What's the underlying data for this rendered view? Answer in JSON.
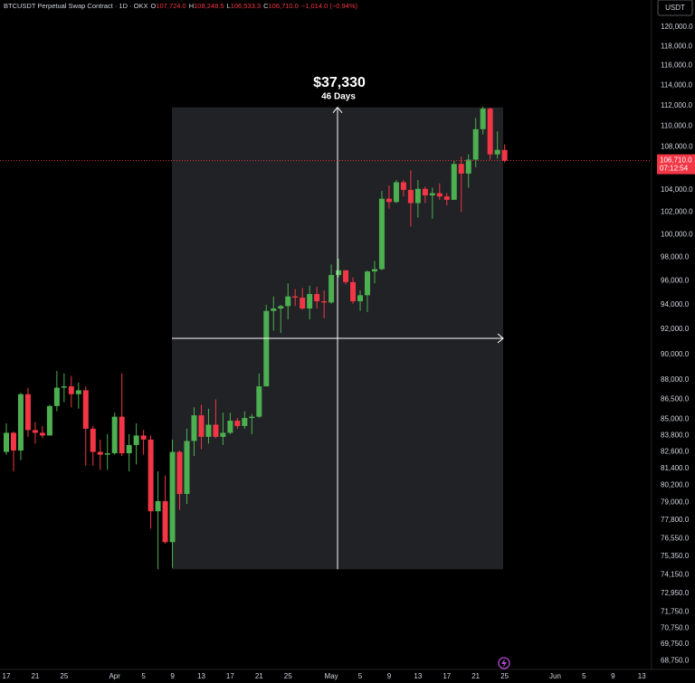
{
  "chart_data": {
    "type": "candlestick",
    "header": {
      "symbol": "BTCUSDT Perpetual Swap Contract · 1D · OKX",
      "ohlc": [
        {
          "key": "O",
          "value": "107,724.0"
        },
        {
          "key": "H",
          "value": "108,248.5"
        },
        {
          "key": "L",
          "value": "106,533.3"
        },
        {
          "key": "C",
          "value": "106,710.0"
        }
      ],
      "change": "−1,014.0 (−0.94%)"
    },
    "currency_button": "USDT",
    "categories": [
      "17",
      null,
      null,
      null,
      "21",
      null,
      null,
      null,
      "25",
      null,
      null,
      null,
      null,
      null,
      null,
      "Apr",
      null,
      null,
      null,
      "5",
      null,
      null,
      null,
      "9",
      null,
      null,
      null,
      "13",
      null,
      null,
      null,
      "17",
      null,
      null,
      null,
      "21",
      null,
      null,
      null,
      "25",
      null,
      null,
      null,
      null,
      null,
      "May",
      null,
      null,
      null,
      "5",
      null,
      null,
      null,
      "9",
      null,
      null,
      null,
      "13",
      null,
      null,
      null,
      "17",
      null,
      null,
      null,
      "21",
      null,
      null,
      null,
      "25",
      null,
      null,
      null,
      null,
      null,
      null,
      "Jun",
      null,
      null,
      null,
      "5",
      null,
      null,
      null,
      "9",
      null,
      null,
      null,
      "13"
    ],
    "open": [
      82600,
      84000,
      82700,
      86900,
      84200,
      84000,
      83800,
      86000,
      87400,
      87500,
      86900,
      87200,
      84300,
      82600,
      82400,
      82500,
      85200,
      82500,
      83100,
      83800,
      83500,
      78400,
      79100,
      76300,
      82600,
      79600,
      83400,
      85300,
      83700,
      84600,
      83700,
      84000,
      84900,
      84500,
      85100,
      85200,
      87500,
      93500,
      93700,
      93900,
      94700,
      94600,
      93700,
      94900,
      94300,
      94200,
      96500,
      96900,
      95900,
      94300,
      94800,
      96800,
      97000,
      103200,
      102900,
      104700,
      104000,
      102800,
      104100,
      103500,
      103700,
      103400,
      103100,
      106400,
      105500,
      106800,
      109700,
      111700,
      107300,
      107724,
      null,
      null,
      null,
      null,
      null,
      null,
      null,
      null,
      null,
      null,
      null,
      null,
      null,
      null,
      null,
      null,
      null,
      null,
      null
    ],
    "high": [
      84700,
      84100,
      87000,
      87400,
      84800,
      84500,
      86100,
      88700,
      88500,
      88300,
      87800,
      87500,
      84500,
      83500,
      83900,
      85500,
      88500,
      83900,
      84700,
      84200,
      83800,
      81200,
      80900,
      83500,
      82700,
      84300,
      85900,
      86100,
      85800,
      86500,
      85500,
      85500,
      85100,
      85600,
      85400,
      88500,
      94000,
      94700,
      94000,
      95800,
      95300,
      95400,
      95600,
      95500,
      95200,
      97400,
      97900,
      96900,
      96300,
      95200,
      96900,
      97700,
      103900,
      104400,
      104900,
      104900,
      105800,
      104900,
      104300,
      104200,
      104600,
      103700,
      106700,
      107100,
      107300,
      110800,
      111900,
      111800,
      109500,
      108248.5,
      null,
      null,
      null,
      null,
      null,
      null,
      null,
      null,
      null,
      null,
      null,
      null,
      null,
      null,
      null,
      null,
      null,
      null,
      null
    ],
    "low": [
      82400,
      81200,
      82000,
      83700,
      83200,
      83600,
      83800,
      85600,
      86300,
      85900,
      85800,
      81600,
      81600,
      81300,
      81300,
      82400,
      82300,
      81200,
      81700,
      82400,
      77200,
      74500,
      76200,
      74600,
      78500,
      78900,
      82300,
      82800,
      83200,
      83600,
      83100,
      83900,
      84300,
      84300,
      83900,
      85100,
      87500,
      91900,
      91700,
      92800,
      93900,
      93600,
      92800,
      93700,
      92900,
      94100,
      96300,
      95700,
      94100,
      93500,
      93400,
      95800,
      96900,
      102300,
      102800,
      103400,
      100700,
      101500,
      102800,
      101400,
      103100,
      102600,
      103100,
      102000,
      104200,
      106100,
      109200,
      106800,
      106900,
      106533.3,
      null,
      null,
      null,
      null,
      null,
      null,
      null,
      null,
      null,
      null,
      null,
      null,
      null,
      null,
      null,
      null,
      null,
      null,
      null
    ],
    "close": [
      84000,
      82700,
      86900,
      84200,
      84000,
      83800,
      86000,
      87400,
      87500,
      86900,
      87200,
      84300,
      82600,
      82400,
      82500,
      85200,
      82500,
      83100,
      83800,
      83500,
      78400,
      79100,
      76300,
      82600,
      79600,
      83400,
      85300,
      83700,
      84600,
      83700,
      84000,
      84900,
      84500,
      85100,
      85200,
      87500,
      93500,
      93700,
      93900,
      94700,
      94600,
      93700,
      94900,
      94300,
      94200,
      96500,
      96900,
      95900,
      94300,
      94800,
      96800,
      97000,
      103200,
      102900,
      104700,
      104000,
      102800,
      104100,
      103500,
      103700,
      103400,
      103100,
      106400,
      105500,
      106800,
      109700,
      111700,
      107300,
      107724,
      106710,
      null,
      null,
      null,
      null,
      null,
      null,
      null,
      null,
      null,
      null,
      null,
      null,
      null,
      null,
      null,
      null,
      null,
      null,
      null
    ],
    "up_color": "#4caf50",
    "down_color": "#f23645",
    "log_scale": true,
    "grid": false,
    "ylim": [
      68220,
      122900
    ],
    "yticks": [
      {
        "value": 120000,
        "label": "120,000.0"
      },
      {
        "value": 118000,
        "label": "118,000.0"
      },
      {
        "value": 116000,
        "label": "116,000.0"
      },
      {
        "value": 114000,
        "label": "114,000.0"
      },
      {
        "value": 112000,
        "label": "112,000.0"
      },
      {
        "value": 110000,
        "label": "110,000.0"
      },
      {
        "value": 108000,
        "label": "108,000.0"
      },
      {
        "value": 104000,
        "label": "104,000.0"
      },
      {
        "value": 102000,
        "label": "102,000.0"
      },
      {
        "value": 100000,
        "label": "100,000.0"
      },
      {
        "value": 98000,
        "label": "98,000.0"
      },
      {
        "value": 96000,
        "label": "96,000.0"
      },
      {
        "value": 94000,
        "label": "94,000.0"
      },
      {
        "value": 92000,
        "label": "92,000.0"
      },
      {
        "value": 90000,
        "label": "90,000.0"
      },
      {
        "value": 88000,
        "label": "88,000.0"
      },
      {
        "value": 86500,
        "label": "86,500.0"
      },
      {
        "value": 85000,
        "label": "85,000.0"
      },
      {
        "value": 83800,
        "label": "83,800.0"
      },
      {
        "value": 82600,
        "label": "82,600.0"
      },
      {
        "value": 81400,
        "label": "81,400.0"
      },
      {
        "value": 80200,
        "label": "80,200.0"
      },
      {
        "value": 79000,
        "label": "79,000.0"
      },
      {
        "value": 77800,
        "label": "77,800.0"
      },
      {
        "value": 76550,
        "label": "76,550.0"
      },
      {
        "value": 75350,
        "label": "75,350.0"
      },
      {
        "value": 74150,
        "label": "74,150.0"
      },
      {
        "value": 72950,
        "label": "72,950.0"
      },
      {
        "value": 71750,
        "label": "71,750.0"
      },
      {
        "value": 70750,
        "label": "70,750.0"
      },
      {
        "value": 69750,
        "label": "69,750.0"
      },
      {
        "value": 68750,
        "label": "68,750.0"
      }
    ],
    "last_price": {
      "value": 106710,
      "label": "106,710.0"
    },
    "countdown": "07:12:54",
    "measure": {
      "label": "$37,330",
      "duration": "46 Days",
      "low": 74500,
      "high": 111830
    }
  }
}
